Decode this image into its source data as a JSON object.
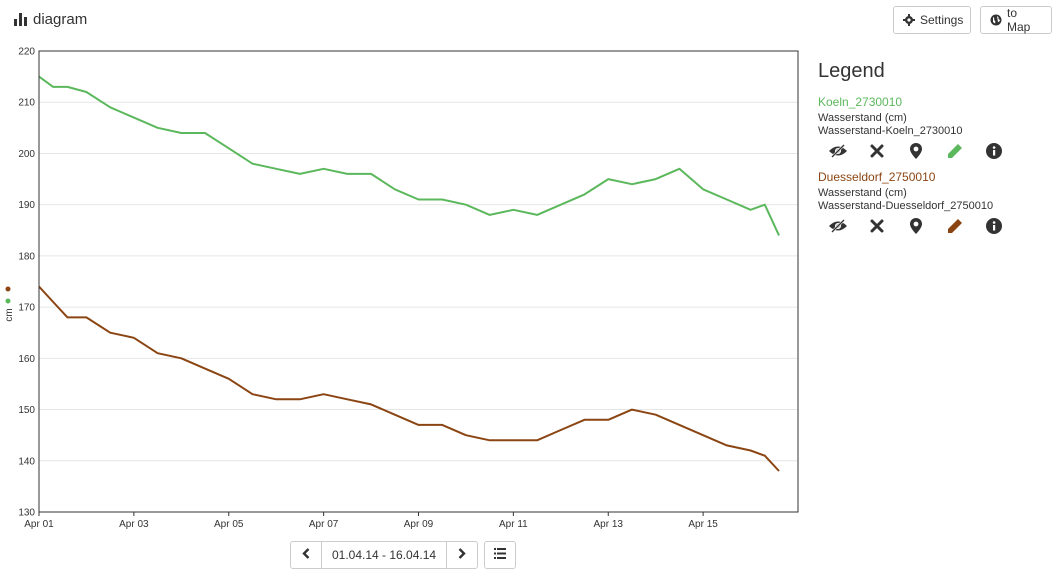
{
  "header": {
    "title": "diagram",
    "settings_label": "Settings",
    "map_label": "to Map"
  },
  "legend": {
    "title": "Legend",
    "entries": [
      {
        "name": "Koeln_2730010",
        "color": "#5cb85c",
        "line1": "Wasserstand (cm)",
        "line2": "Wasserstand-Koeln_2730010"
      },
      {
        "name": "Duesseldorf_2750010",
        "color": "#8b4513",
        "line1": "Wasserstand (cm)",
        "line2": "Wasserstand-Duesseldorf_2750010"
      }
    ]
  },
  "pager": {
    "range": "01.04.14 - 16.04.14"
  },
  "chart_data": {
    "type": "line",
    "ylabel": "cm",
    "ylim": [
      130,
      220
    ],
    "yticks": [
      "130",
      "140",
      "150",
      "160",
      "170",
      "180",
      "190",
      "200",
      "210",
      "220"
    ],
    "xlim": [
      0,
      16
    ],
    "xticks": [
      {
        "x": 0,
        "label": "Apr 01"
      },
      {
        "x": 2,
        "label": "Apr 03"
      },
      {
        "x": 4,
        "label": "Apr 05"
      },
      {
        "x": 6,
        "label": "Apr 07"
      },
      {
        "x": 8,
        "label": "Apr 09"
      },
      {
        "x": 10,
        "label": "Apr 11"
      },
      {
        "x": 12,
        "label": "Apr 13"
      },
      {
        "x": 14,
        "label": "Apr 15"
      }
    ],
    "series": [
      {
        "name": "Koeln_2730010",
        "color": "#5cb85c",
        "x": [
          0,
          0.3,
          0.6,
          1.0,
          1.5,
          2.0,
          2.5,
          3.0,
          3.5,
          4.0,
          4.5,
          5.0,
          5.5,
          6.0,
          6.5,
          7.0,
          7.5,
          8.0,
          8.5,
          9.0,
          9.5,
          10.0,
          10.5,
          11.0,
          11.5,
          12.0,
          12.5,
          13.0,
          13.5,
          14.0,
          14.5,
          15.0,
          15.3,
          15.6
        ],
        "y": [
          215,
          213,
          213,
          212,
          209,
          207,
          205,
          204,
          204,
          201,
          198,
          197,
          196,
          197,
          196,
          196,
          193,
          191,
          191,
          190,
          188,
          189,
          188,
          190,
          192,
          195,
          194,
          195,
          197,
          193,
          191,
          189,
          190,
          184
        ]
      },
      {
        "name": "Duesseldorf_2750010",
        "color": "#8b4513",
        "x": [
          0,
          0.3,
          0.6,
          1.0,
          1.5,
          2.0,
          2.5,
          3.0,
          3.5,
          4.0,
          4.5,
          5.0,
          5.5,
          6.0,
          6.5,
          7.0,
          7.5,
          8.0,
          8.5,
          9.0,
          9.5,
          10.0,
          10.5,
          11.0,
          11.5,
          12.0,
          12.5,
          13.0,
          13.5,
          14.0,
          14.5,
          15.0,
          15.3,
          15.6
        ],
        "y": [
          174,
          171,
          168,
          168,
          165,
          164,
          161,
          160,
          158,
          156,
          153,
          152,
          152,
          153,
          152,
          151,
          149,
          147,
          147,
          145,
          144,
          144,
          144,
          146,
          148,
          148,
          150,
          149,
          147,
          145,
          143,
          142,
          141,
          138
        ]
      }
    ]
  }
}
